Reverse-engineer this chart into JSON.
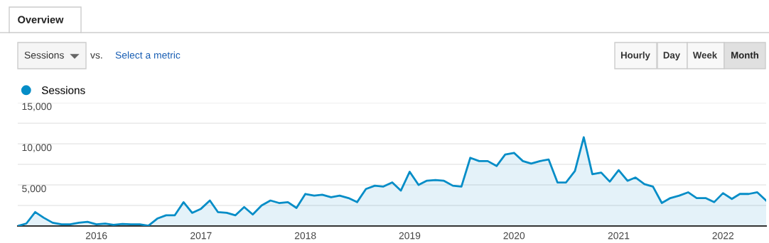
{
  "chart_data": {
    "type": "area",
    "x": [
      "2015-04",
      "2015-05",
      "2015-06",
      "2015-07",
      "2015-08",
      "2015-09",
      "2015-10",
      "2015-11",
      "2015-12",
      "2016-01",
      "2016-02",
      "2016-03",
      "2016-04",
      "2016-05",
      "2016-06",
      "2016-07",
      "2016-08",
      "2016-09",
      "2016-10",
      "2016-11",
      "2016-12",
      "2017-01",
      "2017-02",
      "2017-03",
      "2017-04",
      "2017-05",
      "2017-06",
      "2017-07",
      "2017-08",
      "2017-09",
      "2017-10",
      "2017-11",
      "2017-12",
      "2018-01",
      "2018-02",
      "2018-03",
      "2018-04",
      "2018-05",
      "2018-06",
      "2018-07",
      "2018-08",
      "2018-09",
      "2018-10",
      "2018-11",
      "2018-12",
      "2019-01",
      "2019-02",
      "2019-03",
      "2019-04",
      "2019-05",
      "2019-06",
      "2019-07",
      "2019-08",
      "2019-09",
      "2019-10",
      "2019-11",
      "2019-12",
      "2020-01",
      "2020-02",
      "2020-03",
      "2020-04",
      "2020-05",
      "2020-06",
      "2020-07",
      "2020-08",
      "2020-09",
      "2020-10",
      "2020-11",
      "2020-12",
      "2021-01",
      "2021-02",
      "2021-03",
      "2021-04",
      "2021-05",
      "2021-06",
      "2021-07",
      "2021-08",
      "2021-09",
      "2021-10",
      "2021-11",
      "2021-12",
      "2022-01",
      "2022-02",
      "2022-03",
      "2022-04",
      "2022-05",
      "2022-06"
    ],
    "series": [
      {
        "name": "Sessions",
        "color": "#058dc7",
        "values": [
          0,
          300,
          1700,
          1000,
          400,
          200,
          200,
          400,
          500,
          200,
          300,
          150,
          250,
          200,
          200,
          30,
          900,
          1300,
          1300,
          2900,
          1600,
          2100,
          3100,
          1700,
          1600,
          1300,
          2300,
          1400,
          2500,
          3100,
          2800,
          2900,
          2200,
          3900,
          3700,
          3800,
          3500,
          3700,
          3400,
          2900,
          4500,
          4900,
          4800,
          5300,
          4300,
          6600,
          5000,
          5500,
          5600,
          5500,
          4900,
          4800,
          8300,
          7900,
          7900,
          7300,
          8700,
          8900,
          7900,
          7600,
          7900,
          8100,
          5300,
          5300,
          6700,
          10800,
          6300,
          6500,
          5400,
          6800,
          5500,
          5900,
          5100,
          4800,
          2800,
          3400,
          3700,
          4100,
          3400,
          3400,
          2900,
          4000,
          3300,
          3900,
          3900,
          4100,
          3100
        ]
      }
    ],
    "xlim": [
      "2015-04",
      "2022-06"
    ],
    "xticks": [
      {
        "value": "2016-01",
        "label": "2016"
      },
      {
        "value": "2017-01",
        "label": "2017"
      },
      {
        "value": "2018-01",
        "label": "2018"
      },
      {
        "value": "2019-01",
        "label": "2019"
      },
      {
        "value": "2020-01",
        "label": "2020"
      },
      {
        "value": "2021-01",
        "label": "2021"
      },
      {
        "value": "2022-01",
        "label": "2022"
      }
    ],
    "ylim": [
      0,
      15000
    ],
    "yticks": [
      {
        "value": 2500,
        "label": null
      },
      {
        "value": 5000,
        "label": "5,000"
      },
      {
        "value": 7500,
        "label": null
      },
      {
        "value": 10000,
        "label": "10,000"
      },
      {
        "value": 12500,
        "label": null
      },
      {
        "value": 15000,
        "label": "15,000"
      }
    ],
    "grid": "y",
    "legend": "top left",
    "annotations": [
      "Overview",
      "Sessions",
      "vs.",
      "Select a metric",
      "Hourly",
      "Day",
      "Week",
      "Month"
    ]
  }
}
